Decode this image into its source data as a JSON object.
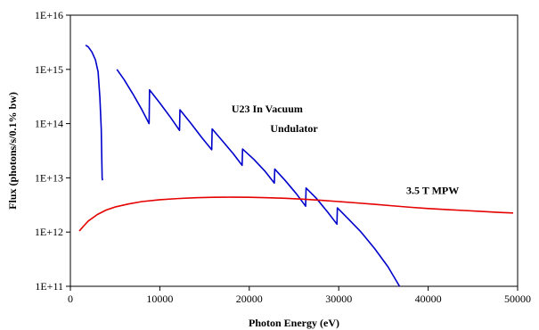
{
  "chart_data": {
    "type": "line",
    "title": "",
    "xlabel": "Photon Energy (eV)",
    "ylabel": "Flux (photons/s/0.1% bw)",
    "xlim": [
      0,
      50000
    ],
    "ylim": [
      100000000000.0,
      1e+16
    ],
    "yscale": "log",
    "grid": false,
    "x_ticks": [
      "0",
      "10000",
      "20000",
      "30000",
      "40000",
      "50000"
    ],
    "y_ticks": [
      "1E+11",
      "1E+12",
      "1E+13",
      "1E+14",
      "1E+15",
      "1E+16"
    ],
    "annotations": [
      {
        "text": "U23 In Vacuum",
        "x": 22000,
        "y": 160000000000000.0
      },
      {
        "text": "Undulator",
        "x": 25000,
        "y": 70000000000000.0
      },
      {
        "text": "3.5 T MPW",
        "x": 40500,
        "y": 5000000000000.0
      }
    ],
    "series": [
      {
        "color": "#0000cc",
        "segments": [
          [
            [
              1700,
              2800000000000000.0
            ],
            [
              2000,
              2600000000000000.0
            ],
            [
              2400,
              2100000000000000.0
            ],
            [
              2800,
              1500000000000000.0
            ],
            [
              3100,
              900000000000000.0
            ],
            [
              3300,
              300000000000000.0
            ],
            [
              3450,
              80000000000000.0
            ],
            [
              3550,
              10000000000000.0
            ],
            [
              3600,
              9000000000000.0
            ]
          ],
          [
            [
              5200,
              1000000000000000.0
            ],
            [
              6000,
              650000000000000.0
            ],
            [
              7000,
              350000000000000.0
            ],
            [
              8000,
              180000000000000.0
            ],
            [
              8800,
              100000000000000.0
            ],
            [
              8850,
              420000000000000.0
            ],
            [
              10000,
              240000000000000.0
            ],
            [
              11200,
              130000000000000.0
            ],
            [
              12200,
              75000000000000.0
            ],
            [
              12250,
              180000000000000.0
            ],
            [
              13500,
              100000000000000.0
            ],
            [
              14700,
              55000000000000.0
            ],
            [
              15800,
              33000000000000.0
            ],
            [
              15850,
              80000000000000.0
            ],
            [
              17000,
              48000000000000.0
            ],
            [
              18200,
              28000000000000.0
            ],
            [
              19200,
              17000000000000.0
            ],
            [
              19250,
              34000000000000.0
            ],
            [
              20500,
              22000000000000.0
            ],
            [
              21800,
              13000000000000.0
            ],
            [
              22800,
              8000000000000.0
            ],
            [
              22850,
              14500000000000.0
            ],
            [
              24000,
              9000000000000.0
            ],
            [
              25300,
              5000000000000.0
            ],
            [
              26300,
              3000000000000.0
            ],
            [
              26350,
              6500000000000.0
            ],
            [
              27500,
              4200000000000.0
            ],
            [
              28800,
              2300000000000.0
            ],
            [
              29800,
              1400000000000.0
            ],
            [
              29850,
              2800000000000.0
            ],
            [
              31000,
              1800000000000.0
            ],
            [
              32500,
              1000000000000.0
            ],
            [
              34000,
              500000000000.0
            ],
            [
              35500,
              230000000000.0
            ],
            [
              36800,
              100000000000.0
            ]
          ]
        ]
      },
      {
        "color": "#e60000",
        "segments": [
          [
            [
              1000,
              1050000000000.0
            ],
            [
              1500,
              1300000000000.0
            ],
            [
              2000,
              1600000000000.0
            ],
            [
              3000,
              2100000000000.0
            ],
            [
              4000,
              2550000000000.0
            ],
            [
              5000,
              2900000000000.0
            ],
            [
              6500,
              3300000000000.0
            ],
            [
              8000,
              3650000000000.0
            ],
            [
              10000,
              3950000000000.0
            ],
            [
              12000,
              4150000000000.0
            ],
            [
              14000,
              4300000000000.0
            ],
            [
              16000,
              4380000000000.0
            ],
            [
              18000,
              4400000000000.0
            ],
            [
              20000,
              4380000000000.0
            ],
            [
              22000,
              4300000000000.0
            ],
            [
              24000,
              4200000000000.0
            ],
            [
              26000,
              4050000000000.0
            ],
            [
              28000,
              3850000000000.0
            ],
            [
              30000,
              3650000000000.0
            ],
            [
              32000,
              3450000000000.0
            ],
            [
              34000,
              3250000000000.0
            ],
            [
              36000,
              3050000000000.0
            ],
            [
              38000,
              2870000000000.0
            ],
            [
              40000,
              2720000000000.0
            ],
            [
              42000,
              2600000000000.0
            ],
            [
              44000,
              2500000000000.0
            ],
            [
              46000,
              2400000000000.0
            ],
            [
              48000,
              2300000000000.0
            ],
            [
              49500,
              2250000000000.0
            ]
          ]
        ]
      }
    ]
  }
}
